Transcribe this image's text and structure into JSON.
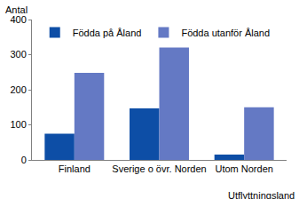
{
  "chart_data": {
    "type": "bar",
    "y_label": "Antal",
    "x_label": "Utflyttningsland",
    "categories": [
      "Finland",
      "Sverige o övr. Norden",
      "Utom Norden"
    ],
    "series": [
      {
        "name": "Födda på Åland",
        "color": "#0d4ea6",
        "values": [
          75,
          147,
          15
        ]
      },
      {
        "name": "Födda utanför Åland",
        "color": "#6479c4",
        "values": [
          248,
          320,
          150
        ]
      }
    ],
    "ylim": [
      0,
      400
    ],
    "yticks": [
      0,
      100,
      200,
      300,
      400
    ],
    "grid": false,
    "legend": "upper left"
  }
}
